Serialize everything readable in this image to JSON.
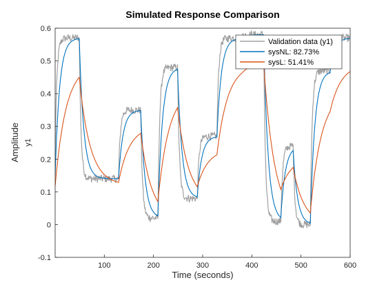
{
  "chart_data": {
    "type": "line",
    "title": "Simulated Response Comparison",
    "xlabel": "Time (seconds)",
    "ylabel": "Amplitude",
    "ylabel2": "y1",
    "xlim": [
      0,
      600
    ],
    "ylim": [
      -0.1,
      0.6
    ],
    "xticks": [
      100,
      200,
      300,
      400,
      500,
      600
    ],
    "yticks": [
      -0.1,
      0,
      0.1,
      0.2,
      0.3,
      0.4,
      0.5,
      0.6
    ],
    "grid": false,
    "legend_position": "top-right",
    "input_steps": [
      [
        0,
        0.57
      ],
      [
        50,
        0.14
      ],
      [
        130,
        0.35
      ],
      [
        175,
        0.02
      ],
      [
        210,
        0.48
      ],
      [
        250,
        0.08
      ],
      [
        290,
        0.27
      ],
      [
        330,
        0.57
      ],
      [
        380,
        0.58
      ],
      [
        425,
        0.01
      ],
      [
        460,
        0.24
      ],
      [
        485,
        0.0
      ],
      [
        520,
        0.47
      ],
      [
        560,
        0.57
      ],
      [
        600,
        0.57
      ]
    ],
    "series": [
      {
        "name": "Validation data (y1)",
        "color": "#a0a0a0",
        "tau": 3.5,
        "noise": 0.012
      },
      {
        "name": "sysNL: 82.73%",
        "color": "#0072bd",
        "tau": 9,
        "noise": 0
      },
      {
        "name": "sysL: 51.41%",
        "color": "#d95319",
        "tau": 22,
        "noise": 0
      }
    ],
    "sysL_params": {
      "gain": 0.86,
      "offset": 0.0
    }
  }
}
